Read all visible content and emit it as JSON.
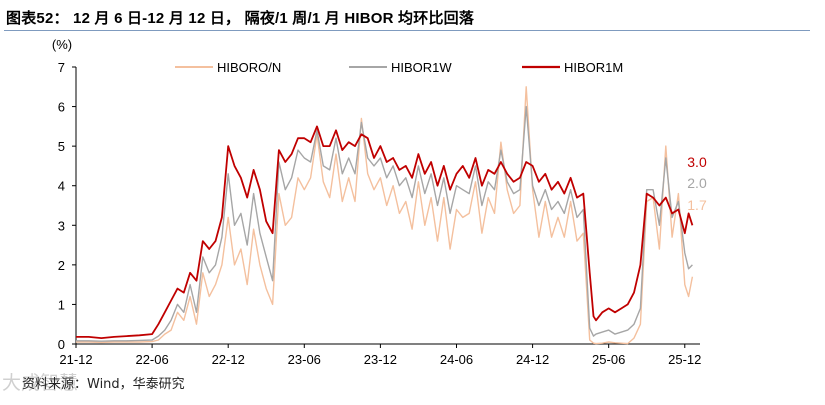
{
  "figure_title": "图表52：  12 月 6 日-12 月 12 日，  隔夜/1 周/1 月 HIBOR 均环比回落",
  "source_note": "资料来源：Wind，华泰研究",
  "watermark": "大成智慧",
  "colors": {
    "title_rule": "#7f9bbf",
    "HIBORO/N": "#f4c09e",
    "HIBOR1W": "#a6a6a6",
    "HIBOR1M": "#c00000"
  },
  "chart_data": {
    "type": "line",
    "title": "",
    "ylabel": "(%)",
    "xlabel": "",
    "ylim": [
      0,
      7
    ],
    "yticks": [
      "0",
      "1",
      "2",
      "3",
      "4",
      "5",
      "6",
      "7"
    ],
    "xticks": [
      "21-12",
      "22-06",
      "22-12",
      "23-06",
      "23-12",
      "24-06",
      "24-12",
      "25-06",
      "25-12"
    ],
    "xtick_positions": [
      0,
      6,
      12,
      18,
      24,
      30,
      36,
      42,
      48
    ],
    "x_unit": "months since 2021-12",
    "grid": false,
    "legend_position": "top",
    "end_labels": [
      {
        "series": "HIBOR1M",
        "text": "3.0"
      },
      {
        "series": "HIBOR1W",
        "text": "2.0"
      },
      {
        "series": "HIBORO/N",
        "text": "1.7"
      }
    ],
    "series": [
      {
        "name": "HIBORO/N",
        "x": [
          0,
          1,
          2,
          3,
          4,
          5,
          6,
          6.5,
          7,
          7.5,
          8,
          8.5,
          9,
          9.5,
          10,
          10.5,
          11,
          11.5,
          12,
          12.5,
          13,
          13.5,
          14,
          14.5,
          15,
          15.5,
          16,
          16.5,
          17,
          17.5,
          18,
          18.5,
          19,
          19.5,
          20,
          20.5,
          21,
          21.5,
          22,
          22.5,
          23,
          23.5,
          24,
          24.5,
          25,
          25.5,
          26,
          26.5,
          27,
          27.5,
          28,
          28.5,
          29,
          29.5,
          30,
          30.5,
          31,
          31.5,
          32,
          32.5,
          33,
          33.5,
          34,
          34.5,
          35,
          35.5,
          36,
          36.5,
          37,
          37.5,
          38,
          38.5,
          39,
          39.5,
          40,
          40.5,
          40.8,
          41,
          41.5,
          42,
          42.5,
          43,
          43.5,
          44,
          44.5,
          45,
          45.5,
          46,
          46.5,
          47,
          47.5,
          48,
          48.3,
          48.6
        ],
        "values": [
          0.05,
          0.05,
          0.04,
          0.05,
          0.05,
          0.05,
          0.06,
          0.1,
          0.25,
          0.35,
          0.8,
          0.6,
          1.2,
          0.5,
          1.8,
          1.2,
          1.5,
          2.0,
          3.2,
          2.0,
          2.4,
          1.5,
          2.9,
          2.0,
          1.4,
          1.0,
          3.8,
          3.0,
          3.2,
          4.2,
          3.9,
          4.2,
          5.3,
          4.1,
          3.7,
          4.8,
          3.6,
          4.2,
          3.6,
          5.7,
          4.3,
          3.9,
          4.2,
          3.5,
          4.0,
          3.3,
          3.6,
          2.9,
          4.1,
          3.0,
          3.7,
          2.6,
          3.7,
          2.4,
          3.4,
          3.2,
          3.3,
          4.1,
          2.8,
          3.7,
          3.3,
          5.1,
          3.9,
          3.3,
          3.5,
          6.5,
          3.9,
          2.7,
          3.6,
          2.7,
          3.2,
          2.7,
          3.6,
          2.6,
          2.8,
          0.1,
          0.02,
          0.01,
          0.02,
          0.05,
          0.03,
          0.02,
          0.01,
          0.15,
          0.5,
          3.6,
          3.7,
          2.4,
          5.0,
          2.7,
          3.8,
          1.5,
          1.2,
          1.7
        ]
      },
      {
        "name": "HIBOR1W",
        "x": [
          0,
          1,
          2,
          3,
          4,
          5,
          6,
          6.5,
          7,
          7.5,
          8,
          8.5,
          9,
          9.5,
          10,
          10.5,
          11,
          11.5,
          12,
          12.5,
          13,
          13.5,
          14,
          14.5,
          15,
          15.5,
          16,
          16.5,
          17,
          17.5,
          18,
          18.5,
          19,
          19.5,
          20,
          20.5,
          21,
          21.5,
          22,
          22.5,
          23,
          23.5,
          24,
          24.5,
          25,
          25.5,
          26,
          26.5,
          27,
          27.5,
          28,
          28.5,
          29,
          29.5,
          30,
          30.5,
          31,
          31.5,
          32,
          32.5,
          33,
          33.5,
          34,
          34.5,
          35,
          35.5,
          36,
          36.5,
          37,
          37.5,
          38,
          38.5,
          39,
          39.5,
          40,
          40.5,
          40.8,
          41,
          41.5,
          42,
          42.5,
          43,
          43.5,
          44,
          44.5,
          45,
          45.5,
          46,
          46.5,
          47,
          47.5,
          48,
          48.3,
          48.6
        ],
        "values": [
          0.08,
          0.08,
          0.07,
          0.08,
          0.08,
          0.09,
          0.1,
          0.2,
          0.35,
          0.6,
          1.0,
          0.8,
          1.5,
          0.8,
          2.2,
          1.8,
          2.0,
          2.7,
          4.3,
          3.0,
          3.3,
          2.5,
          3.8,
          2.8,
          2.2,
          1.6,
          4.6,
          3.9,
          4.2,
          4.9,
          4.7,
          4.6,
          5.4,
          4.5,
          4.4,
          5.2,
          4.3,
          4.7,
          4.3,
          5.6,
          4.7,
          4.5,
          4.7,
          4.2,
          4.5,
          4.0,
          4.2,
          3.7,
          4.5,
          3.8,
          4.3,
          3.5,
          4.2,
          3.3,
          4.0,
          3.9,
          3.8,
          4.5,
          3.5,
          4.1,
          3.9,
          4.9,
          4.1,
          3.8,
          3.9,
          6.0,
          4.0,
          3.5,
          3.9,
          3.4,
          3.6,
          3.3,
          3.9,
          3.2,
          3.4,
          0.4,
          0.2,
          0.25,
          0.3,
          0.35,
          0.25,
          0.3,
          0.35,
          0.5,
          0.9,
          3.9,
          3.9,
          3.0,
          4.7,
          3.2,
          3.6,
          2.3,
          1.9,
          2.0
        ]
      },
      {
        "name": "HIBOR1M",
        "x": [
          0,
          1,
          2,
          3,
          4,
          5,
          6,
          6.5,
          7,
          7.5,
          8,
          8.5,
          9,
          9.5,
          10,
          10.5,
          11,
          11.5,
          12,
          12.5,
          13,
          13.5,
          14,
          14.5,
          15,
          15.5,
          16,
          16.5,
          17,
          17.5,
          18,
          18.5,
          19,
          19.5,
          20,
          20.5,
          21,
          21.5,
          22,
          22.5,
          23,
          23.5,
          24,
          24.5,
          25,
          25.5,
          26,
          26.5,
          27,
          27.5,
          28,
          28.5,
          29,
          29.5,
          30,
          30.5,
          31,
          31.5,
          32,
          32.5,
          33,
          33.5,
          34,
          34.5,
          35,
          35.5,
          36,
          36.5,
          37,
          37.5,
          38,
          38.5,
          39,
          39.5,
          40,
          40.5,
          40.8,
          41,
          41.5,
          42,
          42.5,
          43,
          43.5,
          44,
          44.5,
          45,
          45.5,
          46,
          46.5,
          47,
          47.5,
          48,
          48.3,
          48.6
        ],
        "values": [
          0.18,
          0.18,
          0.15,
          0.18,
          0.2,
          0.22,
          0.25,
          0.5,
          0.8,
          1.1,
          1.4,
          1.3,
          1.8,
          1.6,
          2.6,
          2.4,
          2.6,
          3.2,
          5.0,
          4.5,
          4.2,
          3.7,
          4.4,
          3.9,
          3.1,
          2.8,
          4.9,
          4.6,
          4.8,
          5.2,
          5.2,
          5.1,
          5.5,
          5.0,
          5.0,
          5.4,
          4.9,
          5.1,
          5.0,
          5.3,
          5.2,
          4.7,
          5.0,
          4.6,
          4.7,
          4.4,
          4.5,
          4.2,
          4.8,
          4.3,
          4.6,
          4.0,
          4.5,
          3.9,
          4.3,
          4.5,
          4.2,
          4.7,
          4.0,
          4.4,
          4.3,
          4.6,
          4.3,
          4.1,
          4.2,
          4.6,
          4.5,
          4.1,
          4.3,
          3.9,
          4.1,
          3.8,
          4.2,
          3.7,
          3.8,
          1.8,
          0.7,
          0.6,
          0.8,
          0.9,
          0.8,
          0.9,
          1.0,
          1.3,
          2.0,
          3.8,
          3.7,
          3.5,
          3.7,
          3.3,
          3.4,
          2.8,
          3.3,
          3.0
        ]
      }
    ]
  }
}
